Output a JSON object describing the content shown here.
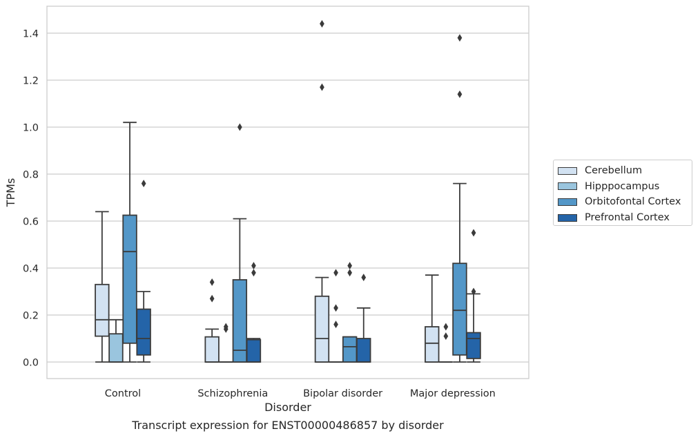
{
  "chart_data": {
    "type": "boxplot",
    "title": "",
    "caption": "Transcript expression for ENST00000486857 by disorder",
    "xlabel": "Disorder",
    "ylabel": "TPMs",
    "ylim": [
      -0.07,
      1.52
    ],
    "yticks": [
      "0.0",
      "0.2",
      "0.4",
      "0.6",
      "0.8",
      "1.0",
      "1.2",
      "1.4"
    ],
    "grid": "horizontal",
    "legend_position": "right",
    "categories": [
      "Control",
      "Schizophrenia",
      "Bipolar disorder",
      "Major depression"
    ],
    "series": [
      {
        "name": "Cerebellum",
        "color": "#d2e2f2",
        "boxes": [
          {
            "min": 0.0,
            "q1": 0.11,
            "median": 0.18,
            "q3": 0.33,
            "max": 0.64,
            "outliers": []
          },
          {
            "min": 0.0,
            "q1": 0.0,
            "median": 0.0,
            "q3": 0.107,
            "max": 0.14,
            "outliers": [
              0.27,
              0.34
            ]
          },
          {
            "min": 0.0,
            "q1": 0.0,
            "median": 0.1,
            "q3": 0.28,
            "max": 0.36,
            "outliers": [
              1.17,
              1.44
            ]
          },
          {
            "min": 0.0,
            "q1": 0.0,
            "median": 0.08,
            "q3": 0.15,
            "max": 0.37,
            "outliers": []
          }
        ]
      },
      {
        "name": "Hipppocampus",
        "color": "#9ac5de",
        "boxes": [
          {
            "min": 0.0,
            "q1": 0.0,
            "median": 0.0,
            "q3": 0.12,
            "max": 0.18,
            "outliers": []
          },
          {
            "min": 0.0,
            "q1": 0.0,
            "median": 0.0,
            "q3": 0.0,
            "max": 0.0,
            "outliers": [
              0.14,
              0.15
            ]
          },
          {
            "min": 0.0,
            "q1": 0.0,
            "median": 0.0,
            "q3": 0.0,
            "max": 0.0,
            "outliers": [
              0.16,
              0.23,
              0.38
            ]
          },
          {
            "min": 0.0,
            "q1": 0.0,
            "median": 0.0,
            "q3": 0.0,
            "max": 0.0,
            "outliers": [
              0.11,
              0.15
            ]
          }
        ]
      },
      {
        "name": "Orbitofontal Cortex",
        "color": "#5397c8",
        "boxes": [
          {
            "min": 0.0,
            "q1": 0.08,
            "median": 0.47,
            "q3": 0.625,
            "max": 1.02,
            "outliers": []
          },
          {
            "min": 0.0,
            "q1": 0.0,
            "median": 0.05,
            "q3": 0.35,
            "max": 0.61,
            "outliers": [
              1.0
            ]
          },
          {
            "min": 0.0,
            "q1": 0.0,
            "median": 0.065,
            "q3": 0.107,
            "max": 0.107,
            "outliers": [
              0.38,
              0.41
            ]
          },
          {
            "min": 0.0,
            "q1": 0.03,
            "median": 0.22,
            "q3": 0.42,
            "max": 0.76,
            "outliers": [
              1.14,
              1.38
            ]
          }
        ]
      },
      {
        "name": "Prefrontal Cortex",
        "color": "#2464a8",
        "boxes": [
          {
            "min": 0.0,
            "q1": 0.03,
            "median": 0.1,
            "q3": 0.225,
            "max": 0.3,
            "outliers": [
              0.76
            ]
          },
          {
            "min": 0.0,
            "q1": 0.0,
            "median": 0.0,
            "q3": 0.095,
            "max": 0.1,
            "outliers": [
              0.38,
              0.41
            ]
          },
          {
            "min": 0.0,
            "q1": 0.0,
            "median": 0.0,
            "q3": 0.1,
            "max": 0.23,
            "outliers": [
              0.36
            ]
          },
          {
            "min": 0.0,
            "q1": 0.015,
            "median": 0.1,
            "q3": 0.125,
            "max": 0.29,
            "outliers": [
              0.3,
              0.55
            ]
          }
        ]
      }
    ]
  }
}
